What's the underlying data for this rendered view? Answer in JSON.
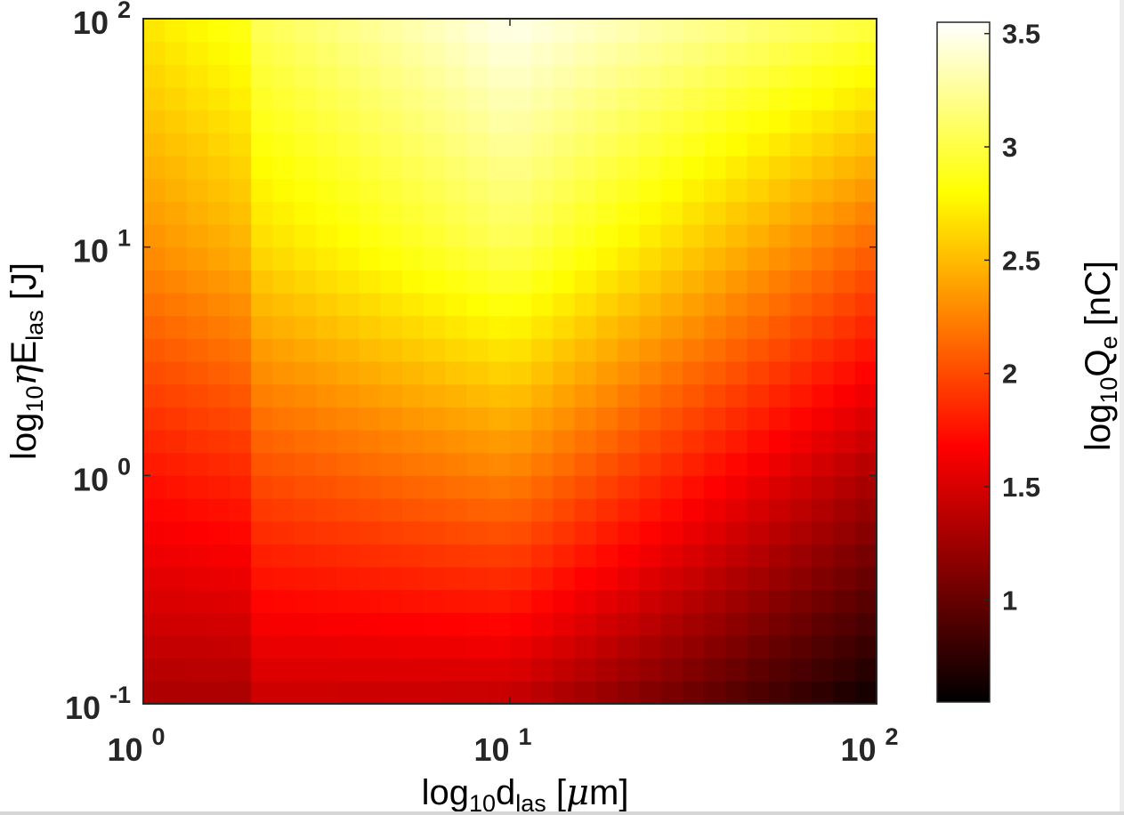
{
  "chart_data": {
    "type": "heatmap",
    "x_scale": "log",
    "y_scale": "log",
    "xlim": [
      1,
      100
    ],
    "ylim": [
      0.1,
      100
    ],
    "x_ticks": [
      {
        "value": 1,
        "base": "10",
        "exp": "0"
      },
      {
        "value": 10,
        "base": "10",
        "exp": "1"
      },
      {
        "value": 100,
        "base": "10",
        "exp": "2"
      }
    ],
    "y_ticks": [
      {
        "value": 0.1,
        "base": "10",
        "exp": "-1"
      },
      {
        "value": 1,
        "base": "10",
        "exp": "0"
      },
      {
        "value": 10,
        "base": "10",
        "exp": "1"
      },
      {
        "value": 100,
        "base": "10",
        "exp": "2"
      }
    ],
    "xlabel": {
      "prefix": "log",
      "sub1": "10",
      "main": "d",
      "sub2": "las",
      "unit_open": " [",
      "greek": "μ",
      "unit_rest": "m]"
    },
    "ylabel": {
      "prefix": "log",
      "sub1": "10",
      "greek": "η",
      "main": "E",
      "sub2": "las",
      "unit": " [J]"
    },
    "colorbar": {
      "label": {
        "prefix": "log",
        "sub1": "10",
        "main": "Q",
        "sub2": "e",
        "unit": " [nC]"
      },
      "range": [
        0.55,
        3.55
      ],
      "ticks": [
        "1",
        "1.5",
        "2",
        "2.5",
        "3",
        "3.5"
      ],
      "tick_values": [
        1,
        1.5,
        2,
        2.5,
        3,
        3.5
      ],
      "colormap": "hot"
    },
    "grid": {
      "x_columns": 34,
      "y_rows": 30,
      "x_log_range": [
        0,
        2
      ],
      "y_log_range": [
        -1,
        2
      ]
    },
    "surface_model": {
      "description": "log10 Qe value sampled on the grid",
      "peak": {
        "x": 10,
        "y": 100,
        "value": 3.5
      },
      "values_at_points": [
        {
          "x": 1,
          "y": 0.1,
          "value": 1.45
        },
        {
          "x": 1,
          "y": 1,
          "value": 1.9
        },
        {
          "x": 1,
          "y": 10,
          "value": 2.45
        },
        {
          "x": 1,
          "y": 100,
          "value": 2.85
        },
        {
          "x": 10,
          "y": 0.1,
          "value": 1.4
        },
        {
          "x": 10,
          "y": 1,
          "value": 2.25
        },
        {
          "x": 10,
          "y": 10,
          "value": 3.05
        },
        {
          "x": 10,
          "y": 100,
          "value": 3.5
        },
        {
          "x": 100,
          "y": 0.1,
          "value": 0.6
        },
        {
          "x": 100,
          "y": 1,
          "value": 1.3
        },
        {
          "x": 100,
          "y": 10,
          "value": 2.1
        },
        {
          "x": 100,
          "y": 100,
          "value": 3.0
        }
      ]
    }
  }
}
